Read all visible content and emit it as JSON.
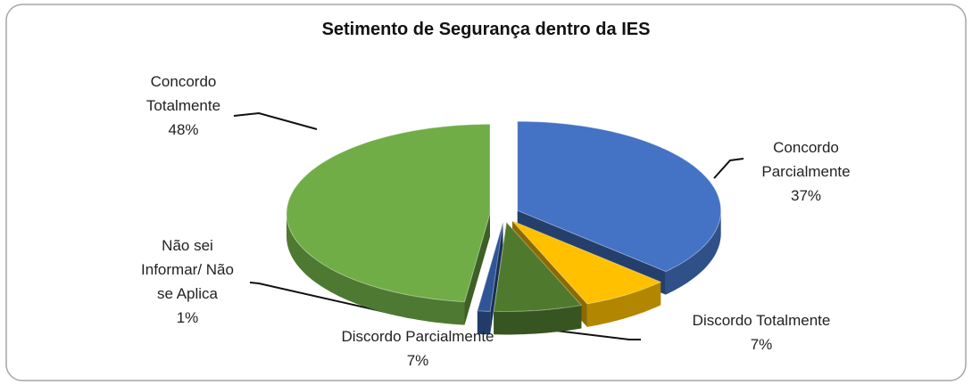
{
  "chart_data": {
    "type": "pie3d",
    "title": "Setimento de Segurança dentro da IES",
    "categories": [
      "Concordo Parcialmente",
      "Discordo Totalmente",
      "Discordo Parcialmente",
      "Não sei Informar/ Não se Aplica",
      "Concordo Totalmente"
    ],
    "values": [
      37,
      7,
      7,
      1,
      48
    ],
    "value_labels": [
      "37%",
      "7%",
      "7%",
      "1%",
      "48%"
    ],
    "colors": [
      "#4472c4",
      "#ffc000",
      "#4f7a2e",
      "#2f5597",
      "#70ad47"
    ]
  }
}
